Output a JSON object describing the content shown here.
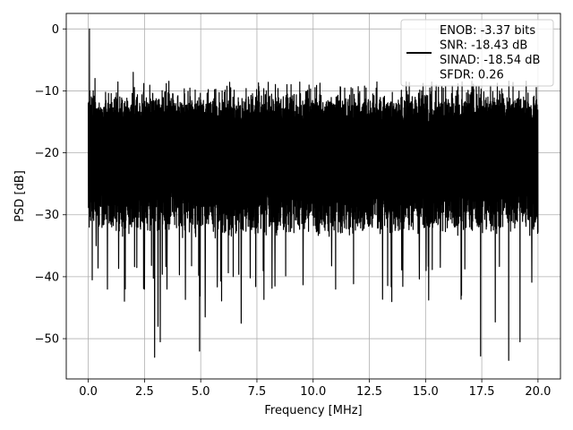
{
  "chart_data": {
    "type": "line",
    "title": "",
    "xlabel": "Frequency [MHz]",
    "ylabel": "PSD [dB]",
    "xlim": [
      -0.98,
      21.0
    ],
    "ylim": [
      -56.5,
      2.5
    ],
    "grid": true,
    "x_ticks": [
      0.0,
      2.5,
      5.0,
      7.5,
      10.0,
      12.5,
      15.0,
      17.5,
      20.0
    ],
    "x_tick_labels": [
      "0.0",
      "2.5",
      "5.0",
      "7.5",
      "10.0",
      "12.5",
      "15.0",
      "17.5",
      "20.0"
    ],
    "y_ticks": [
      0,
      -10,
      -20,
      -30,
      -40,
      -50
    ],
    "y_tick_labels": [
      "0",
      "−10",
      "−20",
      "−30",
      "−40",
      "−50"
    ],
    "legend_position": "upper right",
    "legend_entries": [
      "ENOB: -3.37 bits",
      "SNR: -18.43 dB",
      "SINAD: -18.54 dB",
      "SFDR: 0.26"
    ],
    "series": [
      {
        "color": "#000000",
        "x_range": [
          0,
          20
        ],
        "noise_floor_db": -22,
        "typical_upper_db": -12,
        "typical_lower_db": -32,
        "peak_db": 0,
        "spikes": [
          {
            "x": 0.05,
            "y": 0.0
          },
          {
            "x": 0.1,
            "y": -25.5
          },
          {
            "x": 0.2,
            "y": -28.0
          },
          {
            "x": 0.3,
            "y": -8.0
          },
          {
            "x": 0.35,
            "y": -35.0
          },
          {
            "x": 0.85,
            "y": -42.0
          },
          {
            "x": 2.0,
            "y": -7.0
          },
          {
            "x": 2.5,
            "y": -42.0
          },
          {
            "x": 2.95,
            "y": -53.0
          },
          {
            "x": 3.1,
            "y": -48.0
          },
          {
            "x": 3.2,
            "y": -50.5
          },
          {
            "x": 3.5,
            "y": -42.0
          },
          {
            "x": 4.95,
            "y": -52.0
          },
          {
            "x": 5.2,
            "y": -46.5
          },
          {
            "x": 6.8,
            "y": -47.5
          },
          {
            "x": 8.3,
            "y": -41.5
          },
          {
            "x": 11.0,
            "y": -42.0
          },
          {
            "x": 13.5,
            "y": -44.0
          },
          {
            "x": 16.6,
            "y": -43.0
          },
          {
            "x": 17.45,
            "y": -52.8
          },
          {
            "x": 18.1,
            "y": -47.3
          },
          {
            "x": 18.7,
            "y": -53.5
          },
          {
            "x": 19.2,
            "y": -50.5
          }
        ]
      }
    ]
  }
}
